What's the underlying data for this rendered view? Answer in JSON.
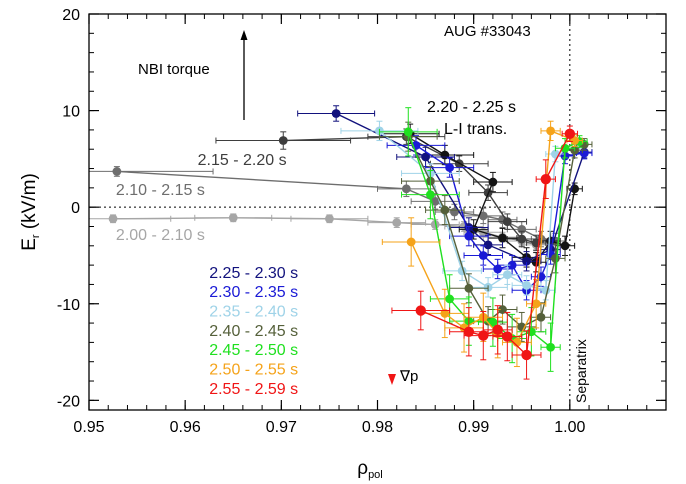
{
  "chart_data": {
    "type": "scatter",
    "title": "",
    "xlabel": "ρ",
    "xlabel_sub": "pol",
    "ylabel": "E",
    "ylabel_sub": "r",
    "ylabel_unit": " (kV/m)",
    "xlim": [
      0.95,
      1.01
    ],
    "ylim": [
      -21,
      20
    ],
    "x_ticks": [
      0.95,
      0.96,
      0.97,
      0.98,
      0.99,
      1.0
    ],
    "x_tick_labels": [
      "0.95",
      "0.96",
      "0.97",
      "0.98",
      "0.99",
      "1.00"
    ],
    "y_ticks": [
      -20,
      -10,
      0,
      10,
      20
    ],
    "y_tick_labels": [
      "-20",
      "-10",
      "0",
      "10",
      "20"
    ],
    "grid": false,
    "reference_lines": [
      {
        "orientation": "horizontal",
        "value": 0,
        "style": "dotted"
      },
      {
        "orientation": "vertical",
        "value": 1.0,
        "style": "dotted",
        "label": "Separatrix"
      }
    ],
    "annotations": {
      "shot": "AUG #33043",
      "nbi": "NBI torque",
      "lh_time": "2.20 - 2.25 s",
      "lh_trans": "L-I trans.",
      "gradp": "∇p"
    },
    "series": [
      {
        "name": "2.00 - 2.10 s",
        "color": "#a6a6a6",
        "label_pos": [
          0.9528,
          -2.8
        ],
        "points": [
          [
            0.9525,
            -1.2
          ],
          [
            0.965,
            -1.1
          ],
          [
            0.975,
            -1.2
          ],
          [
            0.982,
            -1.6
          ],
          [
            0.986,
            -1.8
          ],
          [
            0.989,
            -2.0
          ],
          [
            0.991,
            -2.6
          ],
          [
            0.993,
            -3.1
          ],
          [
            0.995,
            -3.5
          ],
          [
            0.9965,
            -3.9
          ],
          [
            0.998,
            -3.8
          ]
        ],
        "xerr": [
          0.006,
          0.004,
          0.004,
          0.003,
          0.0025,
          0.002,
          0.002,
          0.002,
          0.0015,
          0.0015,
          0.001
        ],
        "yerr": [
          0.4,
          0.4,
          0.4,
          0.5,
          0.5,
          0.5,
          0.5,
          0.5,
          0.5,
          0.5,
          0.5
        ]
      },
      {
        "name": "2.10 - 2.15 s",
        "color": "#6e6e6e",
        "label_pos": [
          0.9528,
          1.9
        ],
        "points": [
          [
            0.9529,
            3.7
          ],
          [
            0.983,
            1.9
          ],
          [
            0.986,
            0.6
          ],
          [
            0.988,
            -0.5
          ],
          [
            0.991,
            -0.9
          ],
          [
            0.993,
            -1.3
          ],
          [
            0.995,
            -2.3
          ],
          [
            0.997,
            -3.3
          ],
          [
            0.9985,
            -3.5
          ]
        ],
        "xerr": [
          0.01,
          0.003,
          0.0025,
          0.002,
          0.002,
          0.0015,
          0.0015,
          0.001,
          0.001
        ],
        "yerr": [
          0.5,
          0.8,
          0.8,
          0.8,
          0.8,
          0.8,
          0.8,
          0.8,
          0.8
        ]
      },
      {
        "name": "2.15 - 2.20 s",
        "color": "#3e3e3e",
        "label_pos": [
          0.9613,
          5.0
        ],
        "points": [
          [
            0.9702,
            6.9
          ],
          [
            0.983,
            7.3
          ],
          [
            0.9885,
            4.5
          ],
          [
            0.9915,
            1.5
          ],
          [
            0.9935,
            -1.5
          ],
          [
            0.995,
            -3.3
          ],
          [
            0.9965,
            -3.7
          ]
        ],
        "xerr": [
          0.007,
          0.004,
          0.003,
          0.002,
          0.002,
          0.0015,
          0.001
        ],
        "yerr": [
          0.9,
          0.8,
          0.8,
          0.8,
          0.8,
          0.8,
          0.8
        ]
      },
      {
        "name": "2.20 - 2.25 s",
        "color": "#141414",
        "label_pos": null,
        "points": [
          [
            0.9834,
            7.6
          ],
          [
            0.987,
            5.4
          ],
          [
            0.992,
            2.6
          ],
          [
            0.99,
            -2.3
          ],
          [
            0.993,
            -3.2
          ],
          [
            0.9955,
            -5.2
          ],
          [
            0.9965,
            -5.7
          ],
          [
            0.998,
            -3.5
          ],
          [
            0.9995,
            -4.0
          ],
          [
            1.0005,
            1.9
          ]
        ],
        "xerr": [
          0.003,
          0.003,
          0.002,
          0.0015,
          0.0015,
          0.0015,
          0.001,
          0.001,
          0.001,
          0.0008
        ],
        "yerr": [
          1.0,
          1.0,
          1.0,
          1.0,
          1.0,
          1.0,
          1.0,
          1.0,
          1.0,
          0.6
        ]
      },
      {
        "name": "2.25 - 2.30 s",
        "color": "#12127d",
        "label_pos": [
          0.9625,
          -6.7
        ],
        "points": [
          [
            0.9757,
            9.7
          ],
          [
            0.985,
            5.2
          ],
          [
            0.9895,
            -2.1
          ],
          [
            0.9915,
            -3.9
          ],
          [
            0.9955,
            -5.6
          ],
          [
            0.998,
            -4.4
          ],
          [
            1.0015,
            5.7
          ]
        ],
        "xerr": [
          0.004,
          0.003,
          0.002,
          0.0015,
          0.0015,
          0.001,
          0.0008
        ],
        "yerr": [
          0.8,
          1.0,
          1.0,
          1.0,
          1.0,
          1.0,
          0.6
        ]
      },
      {
        "name": "2.30 - 2.35 s",
        "color": "#1a1ad6",
        "label_pos": [
          0.9625,
          -8.7
        ],
        "points": [
          [
            0.984,
            6.4
          ],
          [
            0.9875,
            4.1
          ],
          [
            0.9895,
            -3.0
          ],
          [
            0.991,
            -5.0
          ],
          [
            0.9925,
            -6.4
          ],
          [
            0.994,
            -6.0
          ],
          [
            0.9955,
            -8.6
          ],
          [
            0.997,
            -7.2
          ],
          [
            0.998,
            -4.9
          ],
          [
            0.9995,
            5.3
          ],
          [
            1.0015,
            5.6
          ]
        ],
        "xerr": [
          0.003,
          0.0025,
          0.002,
          0.002,
          0.0015,
          0.0015,
          0.0015,
          0.001,
          0.001,
          0.001,
          0.0008
        ],
        "yerr": [
          1.0,
          1.0,
          1.0,
          1.0,
          1.0,
          1.0,
          1.0,
          1.0,
          1.0,
          0.8,
          0.6
        ]
      },
      {
        "name": "2.35 - 2.40 s",
        "color": "#9fd3e8",
        "label_pos": [
          0.9625,
          -10.7
        ],
        "points": [
          [
            0.9802,
            7.9
          ],
          [
            0.9855,
            3.5
          ],
          [
            0.9888,
            -6.6
          ],
          [
            0.9915,
            -8.3
          ],
          [
            0.9935,
            -7.0
          ],
          [
            0.9955,
            -8.1
          ],
          [
            0.9975,
            -8.6
          ],
          [
            0.9985,
            5.5
          ],
          [
            1.001,
            6.5
          ]
        ],
        "xerr": [
          0.004,
          0.003,
          0.002,
          0.002,
          0.0015,
          0.0015,
          0.001,
          0.001,
          0.0008
        ],
        "yerr": [
          1.0,
          1.0,
          1.0,
          1.0,
          1.0,
          1.0,
          1.0,
          0.8,
          0.6
        ]
      },
      {
        "name": "2.40 - 2.45 s",
        "color": "#55603a",
        "label_pos": [
          0.9625,
          -12.7
        ],
        "points": [
          [
            0.9832,
            7.3
          ],
          [
            0.9855,
            2.7
          ],
          [
            0.987,
            -0.3
          ],
          [
            0.9895,
            -8.4
          ],
          [
            0.9915,
            -11.8
          ],
          [
            0.993,
            -10.6
          ],
          [
            0.995,
            -12.4
          ],
          [
            0.997,
            -11.4
          ],
          [
            0.9985,
            -5.3
          ],
          [
            1.0005,
            5.9
          ],
          [
            1.0015,
            6.5
          ]
        ],
        "xerr": [
          0.003,
          0.003,
          0.002,
          0.002,
          0.0015,
          0.0015,
          0.0015,
          0.001,
          0.001,
          0.0008,
          0.0008
        ],
        "yerr": [
          1.5,
          1.5,
          1.5,
          1.5,
          1.5,
          1.5,
          1.5,
          1.5,
          1.5,
          0.8,
          0.6
        ]
      },
      {
        "name": "2.45 - 2.50 s",
        "color": "#1fe01f",
        "label_pos": [
          0.9625,
          -14.7
        ],
        "points": [
          [
            0.9832,
            7.8
          ],
          [
            0.9855,
            1.3
          ],
          [
            0.9875,
            -9.5
          ],
          [
            0.9895,
            -11.8
          ],
          [
            0.992,
            -11.9
          ],
          [
            0.994,
            -13.6
          ],
          [
            0.996,
            -12.9
          ],
          [
            0.998,
            -14.5
          ],
          [
            0.9995,
            6.1
          ],
          [
            1.001,
            6.8
          ]
        ],
        "xerr": [
          0.003,
          0.003,
          0.002,
          0.002,
          0.0015,
          0.0015,
          0.0015,
          0.001,
          0.001,
          0.0008
        ],
        "yerr": [
          2.5,
          2.5,
          2.5,
          2.5,
          2.5,
          2.5,
          2.5,
          2.5,
          1.0,
          0.6
        ]
      },
      {
        "name": "2.50 - 2.55 s",
        "color": "#f5a31a",
        "label_pos": [
          0.9625,
          -16.7
        ],
        "points": [
          [
            0.9835,
            -3.6
          ],
          [
            0.987,
            -11.0
          ],
          [
            0.989,
            -12.5
          ],
          [
            0.991,
            -11.4
          ],
          [
            0.9925,
            -13.1
          ],
          [
            0.9945,
            -14.0
          ],
          [
            0.9965,
            -10.0
          ],
          [
            0.998,
            7.9
          ],
          [
            1.0005,
            6.9
          ]
        ],
        "xerr": [
          0.003,
          0.0025,
          0.002,
          0.002,
          0.0015,
          0.0015,
          0.001,
          0.001,
          0.0008
        ],
        "yerr": [
          2.5,
          2.5,
          2.5,
          2.5,
          2.5,
          2.5,
          2.5,
          1.0,
          0.6
        ]
      },
      {
        "name": "2.55 - 2.59 s",
        "color": "#f01515",
        "label_pos": [
          0.9625,
          -18.7
        ],
        "points": [
          [
            0.9845,
            -10.7
          ],
          [
            0.9895,
            -12.9
          ],
          [
            0.991,
            -13.3
          ],
          [
            0.9925,
            -12.7
          ],
          [
            0.9935,
            -13.4
          ],
          [
            0.9955,
            -15.3
          ],
          [
            0.9975,
            2.9
          ],
          [
            1.0,
            7.6
          ]
        ],
        "xerr": [
          0.003,
          0.002,
          0.002,
          0.0015,
          0.0015,
          0.0015,
          0.001,
          0.0008
        ],
        "yerr": [
          2.0,
          2.5,
          2.5,
          2.5,
          2.5,
          2.5,
          2.0,
          0.8
        ]
      }
    ]
  }
}
